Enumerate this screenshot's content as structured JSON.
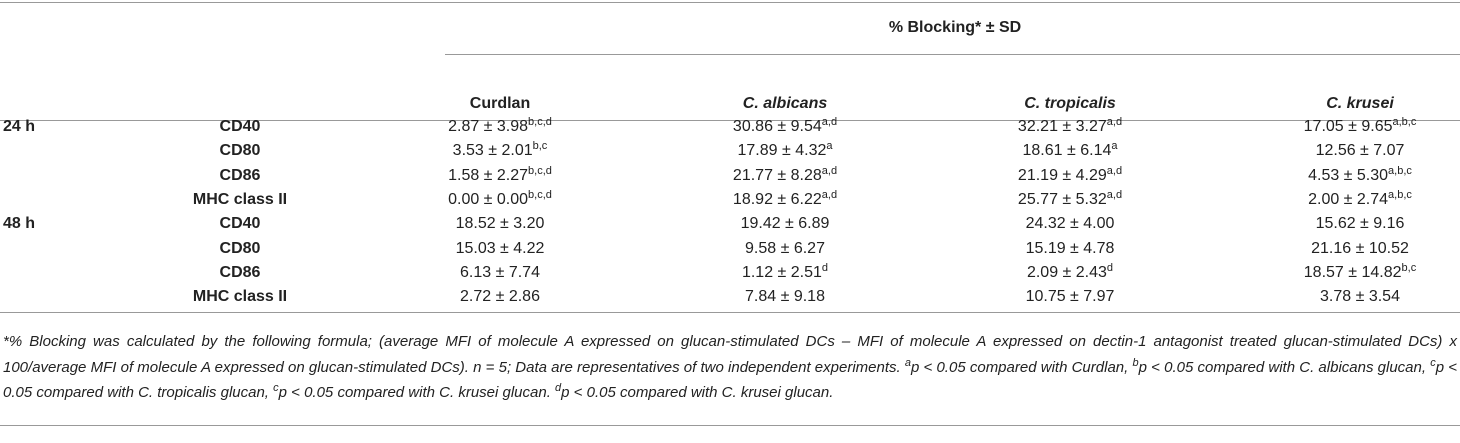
{
  "table": {
    "spanner": "% Blocking* ± SD",
    "columns": [
      "Curdlan",
      "C. albicans",
      "C. tropicalis",
      "C. krusei"
    ],
    "rows": [
      {
        "time": "24 h",
        "marker": "CD40",
        "cells": [
          {
            "value": "2.87 ± 3.98",
            "sup": "b,c,d"
          },
          {
            "value": "30.86 ± 9.54",
            "sup": "a,d"
          },
          {
            "value": "32.21 ± 3.27",
            "sup": "a,d"
          },
          {
            "value": "17.05 ± 9.65",
            "sup": "a,b,c"
          }
        ]
      },
      {
        "marker": "CD80",
        "cells": [
          {
            "value": "3.53 ± 2.01",
            "sup": "b,c"
          },
          {
            "value": "17.89 ± 4.32",
            "sup": "a"
          },
          {
            "value": "18.61 ± 6.14",
            "sup": "a"
          },
          "12.56 ± 7.07"
        ]
      },
      {
        "marker": "CD86",
        "cells": [
          {
            "value": "1.58 ± 2.27",
            "sup": "b,c,d"
          },
          {
            "value": "21.77 ± 8.28",
            "sup": "a,d"
          },
          {
            "value": "21.19 ± 4.29",
            "sup": "a,d"
          },
          {
            "value": "4.53 ± 5.30",
            "sup": "a,b,c"
          }
        ]
      },
      {
        "marker": "MHC class II",
        "cells": [
          {
            "value": "0.00 ± 0.00",
            "sup": "b,c,d"
          },
          {
            "value": "18.92 ± 6.22",
            "sup": "a,d"
          },
          {
            "value": "25.77 ± 5.32",
            "sup": "a,d"
          },
          {
            "value": "2.00 ± 2.74",
            "sup": "a,b,c"
          }
        ]
      },
      {
        "time": "48 h",
        "marker": "CD40",
        "cells": [
          "18.52 ± 3.20",
          "19.42 ± 6.89",
          "24.32 ± 4.00",
          "15.62 ± 9.16"
        ]
      },
      {
        "marker": "CD80",
        "cells": [
          "15.03 ± 4.22",
          "9.58 ± 6.27",
          "15.19 ± 4.78",
          "21.16 ± 10.52"
        ]
      },
      {
        "marker": "CD86",
        "cells": [
          "6.13 ± 7.74",
          {
            "value": "1.12 ± 2.51",
            "sup": "d"
          },
          {
            "value": "2.09 ± 2.43",
            "sup": "d"
          },
          {
            "value": "18.57 ± 14.82",
            "sup": "b,c"
          }
        ]
      },
      {
        "marker": "MHC class II",
        "cells": [
          "2.72 ± 2.86",
          "7.84 ± 9.18",
          "10.75 ± 7.97",
          "3.78 ± 3.54"
        ]
      }
    ]
  },
  "footnote": {
    "parts": [
      "*% Blocking was calculated by the following formula; (average MFI of molecule A expressed on glucan-stimulated DCs – MFI of molecule A expressed on dectin-1 antagonist treated glucan-stimulated DCs) x 100/average MFI of molecule A expressed on glucan-stimulated DCs). n = 5; Data are representatives of two independent experiments. ",
      {
        "text": "a",
        "sup": true
      },
      "p < 0.05 compared with Curdlan, ",
      {
        "text": "b",
        "sup": true
      },
      "p < 0.05 compared with C. albicans glucan, ",
      {
        "text": "c",
        "sup": true
      },
      "p < 0.05 compared with C. tropicalis glucan, ",
      {
        "text": "c",
        "sup": true
      },
      "p < 0.05 compared with C. krusei glucan. ",
      {
        "text": "d",
        "sup": true
      },
      "p < 0.05 compared with C. krusei glucan."
    ]
  }
}
